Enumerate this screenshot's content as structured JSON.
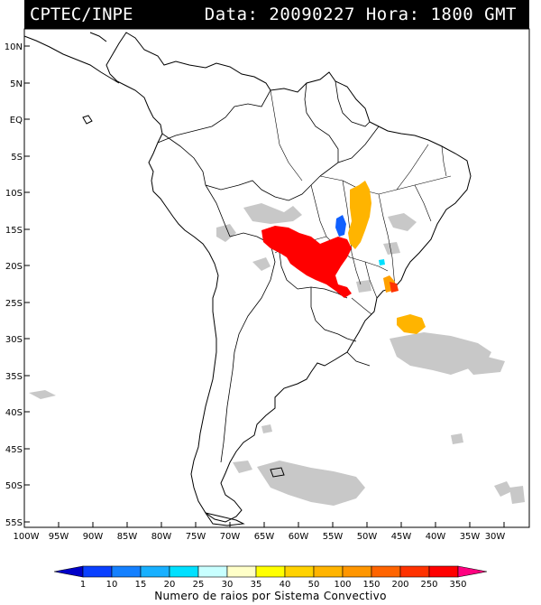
{
  "header": {
    "agency": "CPTEC/INPE",
    "datetime": "Data: 20090227  Hora: 1800 GMT"
  },
  "map": {
    "lat_labels": [
      "10N",
      "5N",
      "EQ",
      "5S",
      "10S",
      "15S",
      "20S",
      "25S",
      "30S",
      "35S",
      "40S",
      "45S",
      "50S",
      "55S"
    ],
    "lon_labels": [
      "100W",
      "95W",
      "90W",
      "85W",
      "80W",
      "75W",
      "70W",
      "65W",
      "60W",
      "55W",
      "50W",
      "45W",
      "40W",
      "35W",
      "30W"
    ]
  },
  "legend": {
    "values": [
      "1",
      "10",
      "15",
      "20",
      "25",
      "30",
      "35",
      "40",
      "50",
      "100",
      "150",
      "200",
      "250",
      "350"
    ],
    "colors": [
      "#0000c8",
      "#0a40ff",
      "#1480ff",
      "#18b0ff",
      "#00e0ff",
      "#c8ffff",
      "#ffffc8",
      "#ffff00",
      "#ffd200",
      "#ffb400",
      "#ff9600",
      "#ff6400",
      "#ff3200",
      "#ff0000",
      "#ff0080"
    ],
    "caption": "Numero de raios por Sistema Convectivo"
  }
}
